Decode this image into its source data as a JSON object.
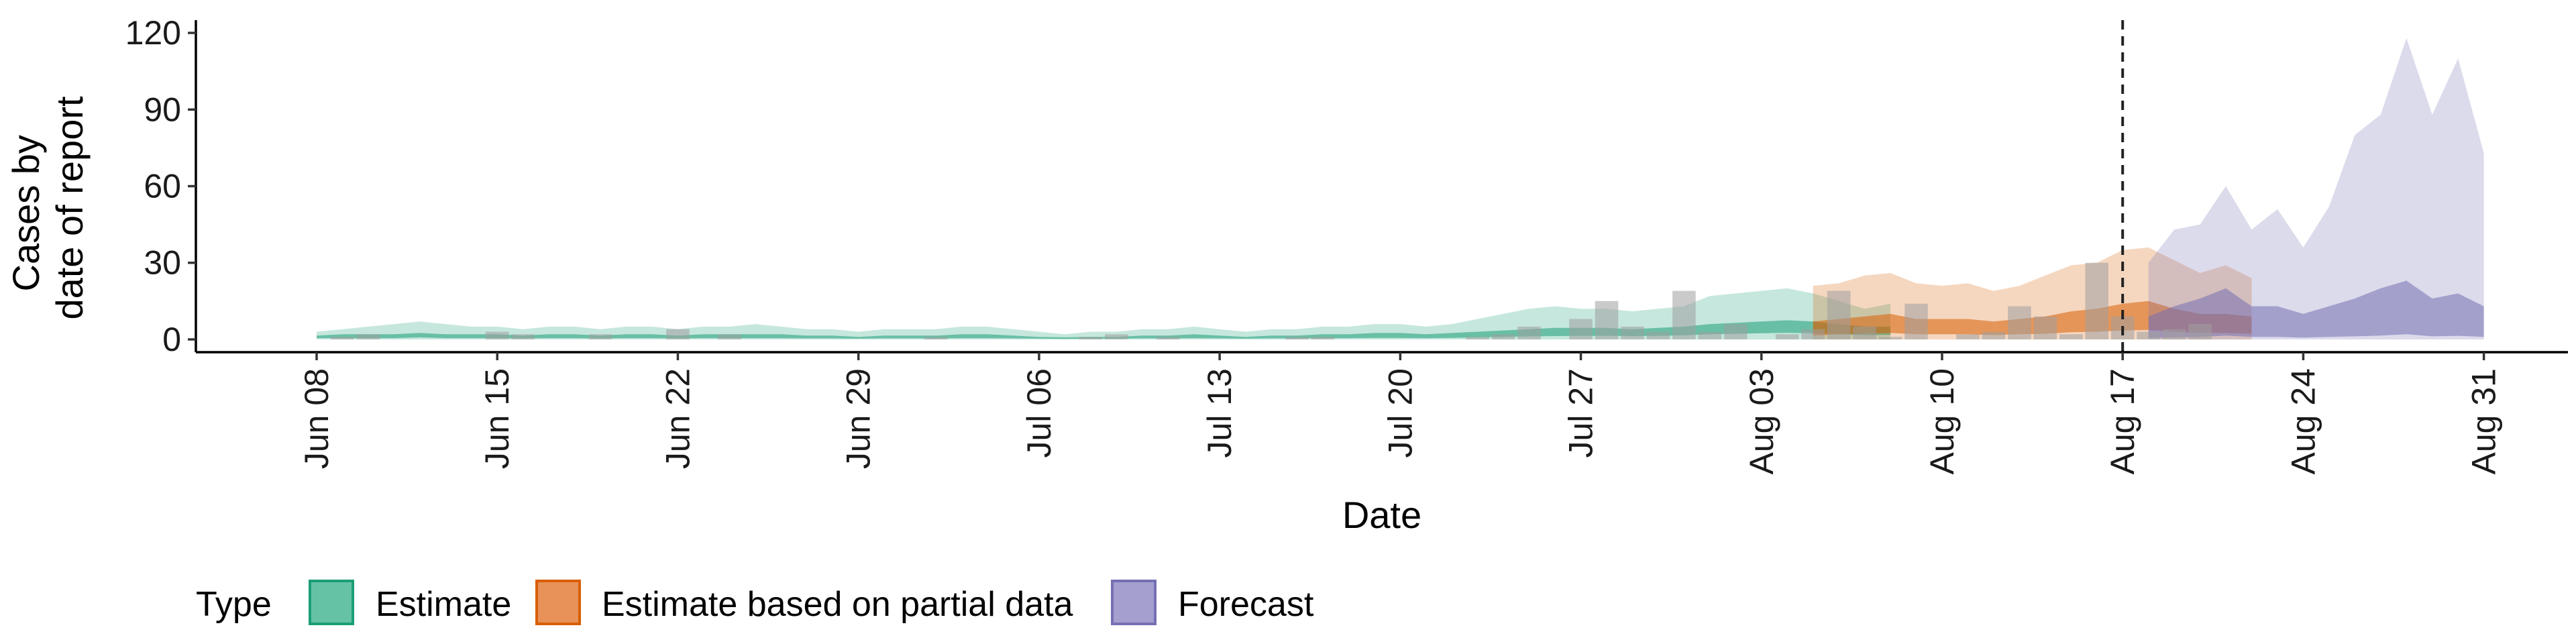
{
  "chart_data": {
    "type": "area",
    "xlabel": "Date",
    "ylabel_lines": [
      "Cases by",
      "date of report"
    ],
    "ylim": [
      -5,
      125
    ],
    "yticks": [
      0,
      30,
      60,
      90,
      120
    ],
    "xlim": [
      -2,
      83
    ],
    "xticks": [
      {
        "day": 0,
        "label": "Jun 08"
      },
      {
        "day": 7,
        "label": "Jun 15"
      },
      {
        "day": 14,
        "label": "Jun 22"
      },
      {
        "day": 21,
        "label": "Jun 29"
      },
      {
        "day": 28,
        "label": "Jul 06"
      },
      {
        "day": 35,
        "label": "Jul 13"
      },
      {
        "day": 42,
        "label": "Jul 20"
      },
      {
        "day": 49,
        "label": "Jul 27"
      },
      {
        "day": 56,
        "label": "Aug 03"
      },
      {
        "day": 63,
        "label": "Aug 10"
      },
      {
        "day": 70,
        "label": "Aug 17"
      },
      {
        "day": 77,
        "label": "Aug 24"
      },
      {
        "day": 84,
        "label": "Aug 31"
      }
    ],
    "forecast_start_day": 70,
    "legend": {
      "title": "Type",
      "items": [
        {
          "label": "Estimate",
          "fill": "#66c2a5",
          "stroke": "#1b9e77"
        },
        {
          "label": "Estimate based on partial data",
          "fill": "#e8925a",
          "stroke": "#d95f02"
        },
        {
          "label": "Forecast",
          "fill": "#a59fd0",
          "stroke": "#7570b3"
        }
      ]
    },
    "series": [
      {
        "name": "Estimate",
        "color": "#1b9e77",
        "start_day": 0,
        "outer_upper": [
          3,
          4,
          5,
          6,
          7,
          6,
          5,
          5,
          4,
          5,
          5,
          4,
          5,
          5,
          4,
          5,
          5,
          6,
          5,
          4,
          4,
          3,
          4,
          4,
          4,
          5,
          5,
          4,
          3,
          2,
          3,
          3,
          4,
          4,
          5,
          4,
          3,
          4,
          4,
          5,
          5,
          6,
          6,
          5,
          6,
          8,
          10,
          12,
          13,
          12,
          12,
          11,
          12,
          13,
          17,
          18,
          19,
          20,
          18,
          15,
          12,
          14
        ],
        "outer_lower": [
          0,
          0,
          0,
          0,
          0,
          0,
          0,
          0,
          0,
          0,
          0,
          0,
          0,
          0,
          0,
          0,
          0,
          0,
          0,
          0,
          0,
          0,
          0,
          0,
          0,
          0,
          0,
          0,
          0,
          0,
          0,
          0,
          0,
          0,
          0,
          0,
          0,
          0,
          0,
          0,
          0,
          0,
          0,
          0,
          0,
          0,
          0,
          0,
          0,
          0,
          0,
          0,
          0,
          0,
          0,
          0,
          0,
          0,
          0,
          0,
          0,
          0
        ],
        "inner_upper": [
          1.5,
          2,
          2,
          2,
          2.5,
          2,
          2,
          2,
          1.5,
          2,
          2,
          1.5,
          2,
          2,
          1.5,
          2,
          2,
          2,
          2,
          1.5,
          1.5,
          1,
          1.5,
          1.5,
          1.5,
          2,
          2,
          1.5,
          1,
          0.8,
          1,
          1,
          1.5,
          1.5,
          2,
          1.5,
          1,
          1.5,
          1.5,
          2,
          2,
          2.5,
          2.5,
          2,
          2.5,
          3,
          3.5,
          4,
          4.5,
          4.5,
          4.5,
          4,
          4.5,
          5,
          6,
          6.5,
          7,
          7.5,
          7,
          6,
          5,
          5
        ],
        "inner_lower": [
          0.5,
          0.5,
          0.5,
          0.5,
          0.8,
          0.5,
          0.5,
          0.5,
          0.4,
          0.5,
          0.5,
          0.4,
          0.5,
          0.5,
          0.4,
          0.5,
          0.5,
          0.5,
          0.5,
          0.4,
          0.4,
          0.3,
          0.4,
          0.4,
          0.4,
          0.5,
          0.5,
          0.4,
          0.3,
          0.2,
          0.3,
          0.3,
          0.4,
          0.4,
          0.5,
          0.4,
          0.3,
          0.4,
          0.4,
          0.5,
          0.5,
          0.6,
          0.6,
          0.5,
          0.6,
          0.8,
          1,
          1.2,
          1.3,
          1.4,
          1.4,
          1.3,
          1.4,
          1.6,
          2,
          2.2,
          2.4,
          2.6,
          2.4,
          2,
          1.7,
          1.7
        ]
      },
      {
        "name": "Estimate based on partial data",
        "color": "#d95f02",
        "start_day": 58,
        "outer_upper": [
          21,
          22,
          25,
          26,
          22,
          21,
          22,
          19,
          21,
          25,
          29,
          30,
          35,
          36,
          31,
          26,
          29,
          24
        ],
        "outer_lower": [
          0,
          0,
          0,
          0,
          0,
          0,
          0,
          0,
          0,
          0,
          0,
          0,
          0,
          0,
          0,
          0,
          0,
          0
        ],
        "inner_upper": [
          7,
          8,
          9,
          10,
          8,
          8,
          8,
          7,
          8,
          9,
          11,
          12,
          14,
          15,
          12,
          10,
          10,
          9
        ],
        "inner_lower": [
          1.5,
          2,
          2.2,
          2.5,
          2,
          2,
          2,
          1.7,
          2,
          2.2,
          2.8,
          3,
          3.5,
          3.7,
          3,
          2.5,
          2.5,
          2.2
        ]
      },
      {
        "name": "Forecast",
        "color": "#7570b3",
        "start_day": 71,
        "outer_upper": [
          30,
          43,
          45,
          60,
          43,
          51,
          36,
          52,
          80,
          88,
          118,
          88,
          110,
          73
        ],
        "outer_lower": [
          0,
          0,
          0,
          0,
          0,
          0,
          0,
          0,
          0,
          0,
          0,
          0,
          0,
          0
        ],
        "inner_upper": [
          9,
          13,
          16,
          20,
          13,
          13,
          10,
          13,
          16,
          20,
          23,
          16,
          18,
          13
        ],
        "inner_lower": [
          0.5,
          0.8,
          1,
          1.5,
          1,
          1,
          0.7,
          1,
          1.2,
          1.5,
          2,
          1.2,
          1.4,
          1
        ]
      }
    ],
    "observed_cases": {
      "start_day": 0,
      "values": [
        0,
        1,
        2,
        0,
        0,
        0,
        0,
        3,
        2,
        0,
        0,
        2,
        0,
        0,
        4,
        0,
        2,
        0,
        0,
        0,
        0,
        0,
        0,
        0,
        1,
        0,
        0,
        0,
        0,
        0,
        1,
        2,
        0,
        1,
        0,
        0,
        0,
        0,
        1,
        1,
        0,
        0,
        0,
        0,
        0,
        1,
        2,
        5,
        0,
        8,
        15,
        5,
        3,
        19,
        3,
        6,
        0,
        2,
        4,
        19,
        5,
        1,
        14,
        0,
        2,
        3,
        13,
        9,
        2,
        30,
        9,
        3,
        4,
        6
      ]
    }
  }
}
